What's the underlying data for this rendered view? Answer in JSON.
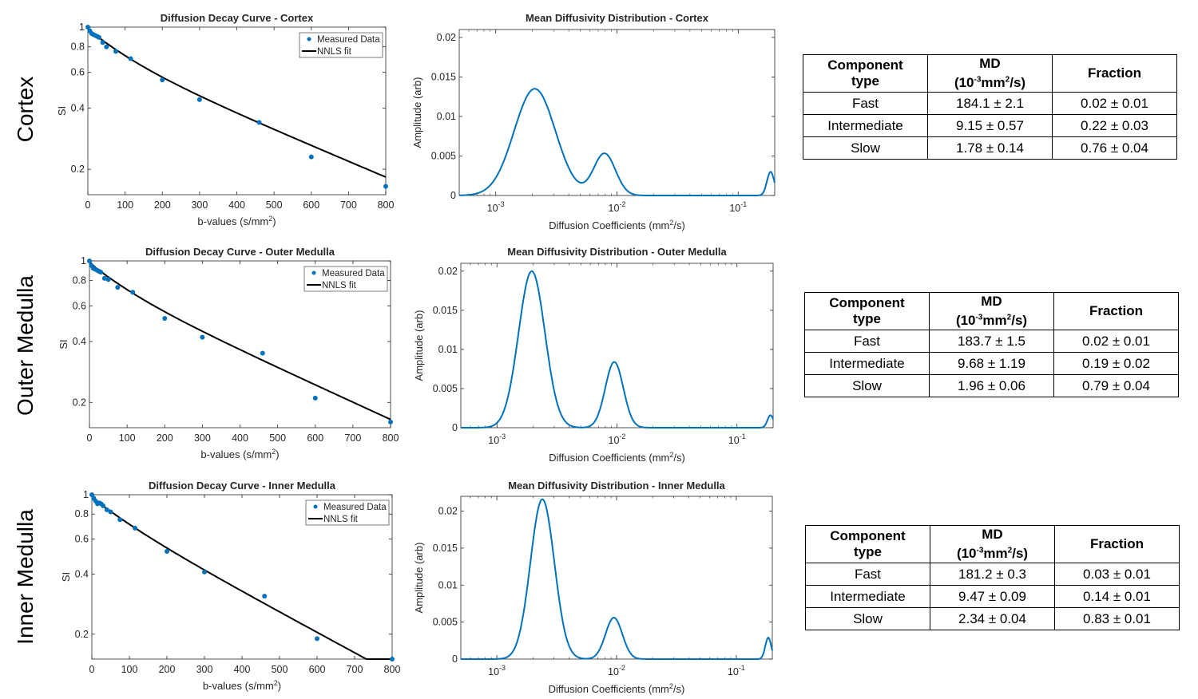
{
  "row_labels": [
    "Cortex",
    "Outer Medulla",
    "Inner Medulla"
  ],
  "table_headers": {
    "component_line1": "Component",
    "component_line2": "type",
    "md_line1": "MD",
    "md_unit_a": "(10",
    "md_unit_exp": "-3",
    "md_unit_b": "mm",
    "md_unit_sq": "2",
    "md_unit_c": "/s)",
    "fraction": "Fraction"
  },
  "tables": [
    {
      "region": "Cortex",
      "rows": [
        {
          "type": "Fast",
          "md": "184.1 ± 2.1",
          "fraction": "0.02 ± 0.01"
        },
        {
          "type": "Intermediate",
          "md": "9.15 ± 0.57",
          "fraction": "0.22 ± 0.03"
        },
        {
          "type": "Slow",
          "md": "1.78 ± 0.14",
          "fraction": "0.76 ± 0.04"
        }
      ]
    },
    {
      "region": "Outer Medulla",
      "rows": [
        {
          "type": "Fast",
          "md": "183.7 ± 1.5",
          "fraction": "0.02 ± 0.01"
        },
        {
          "type": "Intermediate",
          "md": "9.68 ± 1.19",
          "fraction": "0.19 ± 0.02"
        },
        {
          "type": "Slow",
          "md": "1.96 ± 0.06",
          "fraction": "0.79 ± 0.04"
        }
      ]
    },
    {
      "region": "Inner Medulla",
      "rows": [
        {
          "type": "Fast",
          "md": "181.2 ± 0.3",
          "fraction": "0.03 ± 0.01"
        },
        {
          "type": "Intermediate",
          "md": "9.47 ± 0.09",
          "fraction": "0.14 ± 0.01"
        },
        {
          "type": "Slow",
          "md": "2.34 ± 0.04",
          "fraction": "0.83 ± 0.01"
        }
      ]
    }
  ],
  "colors": {
    "data_blue": "#0072BD",
    "fit_black": "#000000",
    "axis": "#262626"
  },
  "chart_data": [
    {
      "type": "scatter",
      "title": "Diffusion Decay Curve - Cortex",
      "xlabel": "b-values (s/mm",
      "xlabel_sup": "2",
      "xlabel_end": ")",
      "ylabel": "SI",
      "xlim": [
        0,
        800
      ],
      "ylim_log": [
        0.15,
        1.0
      ],
      "xticks": [
        0,
        100,
        200,
        300,
        400,
        500,
        600,
        700,
        800
      ],
      "yticks": [
        0.2,
        0.4,
        0.6,
        0.8,
        1
      ],
      "ytick_labels": [
        "0.2",
        "0.4",
        "0.6",
        "0.8",
        "1"
      ],
      "legend": [
        "Measured Data",
        "NNLS fit"
      ],
      "series": [
        {
          "name": "Measured Data",
          "x": [
            0,
            5,
            10,
            15,
            20,
            25,
            30,
            40,
            50,
            75,
            115,
            200,
            300,
            460,
            600,
            800
          ],
          "y": [
            1.0,
            0.96,
            0.93,
            0.92,
            0.91,
            0.9,
            0.89,
            0.84,
            0.8,
            0.76,
            0.7,
            0.55,
            0.44,
            0.34,
            0.23,
            0.165
          ]
        },
        {
          "name": "NNLS fit",
          "components": [
            [
              0.02,
              184.1
            ],
            [
              0.22,
              9.15
            ],
            [
              0.76,
              1.78
            ]
          ]
        }
      ]
    },
    {
      "type": "line",
      "title": "Mean Diffusivity Distribution - Cortex",
      "xlabel": "Diffusion Coefficients (mm",
      "xlabel_sup": "2",
      "xlabel_end": "/s)",
      "ylabel": "Amplitude (arb)",
      "xlim_log": [
        0.0005,
        0.2
      ],
      "ylim": [
        0,
        0.021
      ],
      "xticks": [
        0.001,
        0.01,
        0.1
      ],
      "xtick_labels": [
        [
          "10",
          "-3"
        ],
        [
          "10",
          "-2"
        ],
        [
          "10",
          "-1"
        ]
      ],
      "yticks": [
        0,
        0.005,
        0.01,
        0.015,
        0.02
      ],
      "ytick_labels": [
        "0",
        "0.005",
        "0.01",
        "0.015",
        "0.02"
      ],
      "peaks": [
        {
          "center": 0.0021,
          "amplitude": 0.0135,
          "width_decades": 0.17
        },
        {
          "center": 0.0079,
          "amplitude": 0.0053,
          "width_decades": 0.09
        },
        {
          "center": 0.185,
          "amplitude": 0.003,
          "width_decades": 0.03
        }
      ]
    },
    {
      "type": "scatter",
      "title": "Diffusion Decay Curve - Outer Medulla",
      "xlabel": "b-values (s/mm",
      "xlabel_sup": "2",
      "xlabel_end": ")",
      "ylabel": "SI",
      "xlim": [
        0,
        800
      ],
      "ylim_log": [
        0.15,
        1.0
      ],
      "xticks": [
        0,
        100,
        200,
        300,
        400,
        500,
        600,
        700,
        800
      ],
      "yticks": [
        0.2,
        0.4,
        0.6,
        0.8,
        1
      ],
      "ytick_labels": [
        "0.2",
        "0.4",
        "0.6",
        "0.8",
        "1"
      ],
      "legend": [
        "Measured Data",
        "NNLS fit"
      ],
      "series": [
        {
          "name": "Measured Data",
          "x": [
            0,
            5,
            10,
            15,
            20,
            25,
            30,
            40,
            50,
            75,
            115,
            200,
            300,
            460,
            600,
            800
          ],
          "y": [
            1.0,
            0.95,
            0.92,
            0.91,
            0.9,
            0.89,
            0.88,
            0.82,
            0.81,
            0.74,
            0.7,
            0.52,
            0.42,
            0.35,
            0.21,
            0.16
          ]
        },
        {
          "name": "NNLS fit",
          "components": [
            [
              0.02,
              183.7
            ],
            [
              0.19,
              9.68
            ],
            [
              0.79,
              1.96
            ]
          ]
        }
      ]
    },
    {
      "type": "line",
      "title": "Mean Diffusivity Distribution - Outer Medulla",
      "xlabel": "Diffusion Coefficients (mm",
      "xlabel_sup": "2",
      "xlabel_end": "/s)",
      "ylabel": "Amplitude (arb)",
      "xlim_log": [
        0.0005,
        0.2
      ],
      "ylim": [
        0,
        0.021
      ],
      "xticks": [
        0.001,
        0.01,
        0.1
      ],
      "xtick_labels": [
        [
          "10",
          "-3"
        ],
        [
          "10",
          "-2"
        ],
        [
          "10",
          "-1"
        ]
      ],
      "yticks": [
        0,
        0.005,
        0.01,
        0.015,
        0.02
      ],
      "ytick_labels": [
        "0",
        "0.005",
        "0.01",
        "0.015",
        "0.02"
      ],
      "peaks": [
        {
          "center": 0.00195,
          "amplitude": 0.02,
          "width_decades": 0.11
        },
        {
          "center": 0.0095,
          "amplitude": 0.0084,
          "width_decades": 0.075
        },
        {
          "center": 0.19,
          "amplitude": 0.0016,
          "width_decades": 0.025
        }
      ]
    },
    {
      "type": "scatter",
      "title": "Diffusion Decay Curve - Inner Medulla",
      "xlabel": "b-values (s/mm",
      "xlabel_sup": "2",
      "xlabel_end": ")",
      "ylabel": "SI",
      "xlim": [
        0,
        800
      ],
      "ylim_log": [
        0.15,
        1.0
      ],
      "xticks": [
        0,
        100,
        200,
        300,
        400,
        500,
        600,
        700,
        800
      ],
      "yticks": [
        0.2,
        0.4,
        0.6,
        0.8,
        1
      ],
      "ytick_labels": [
        "0.2",
        "0.4",
        "0.6",
        "0.8",
        "1"
      ],
      "legend": [
        "Measured Data",
        "NNLS fit"
      ],
      "series": [
        {
          "name": "Measured Data",
          "x": [
            0,
            5,
            10,
            15,
            20,
            25,
            30,
            40,
            50,
            75,
            115,
            200,
            300,
            460,
            600,
            800
          ],
          "y": [
            1.0,
            0.96,
            0.93,
            0.9,
            0.91,
            0.9,
            0.88,
            0.84,
            0.82,
            0.75,
            0.68,
            0.52,
            0.41,
            0.31,
            0.19,
            0.15
          ]
        },
        {
          "name": "NNLS fit",
          "components": [
            [
              0.03,
              181.2
            ],
            [
              0.14,
              9.47
            ],
            [
              0.83,
              2.34
            ]
          ]
        }
      ]
    },
    {
      "type": "line",
      "title": "Mean Diffusivity Distribution - Inner Medulla",
      "xlabel": "Diffusion Coefficients (mm",
      "xlabel_sup": "2",
      "xlabel_end": "/s)",
      "ylabel": "Amplitude (arb)",
      "xlim_log": [
        0.0005,
        0.2
      ],
      "ylim": [
        0,
        0.022
      ],
      "xticks": [
        0.001,
        0.01,
        0.1
      ],
      "xtick_labels": [
        [
          "10",
          "-3"
        ],
        [
          "10",
          "-2"
        ],
        [
          "10",
          "-1"
        ]
      ],
      "yticks": [
        0,
        0.005,
        0.01,
        0.015,
        0.02
      ],
      "ytick_labels": [
        "0",
        "0.005",
        "0.01",
        "0.015",
        "0.02"
      ],
      "peaks": [
        {
          "center": 0.0024,
          "amplitude": 0.0216,
          "width_decades": 0.1
        },
        {
          "center": 0.0095,
          "amplitude": 0.0056,
          "width_decades": 0.07
        },
        {
          "center": 0.185,
          "amplitude": 0.0029,
          "width_decades": 0.025
        }
      ]
    }
  ]
}
